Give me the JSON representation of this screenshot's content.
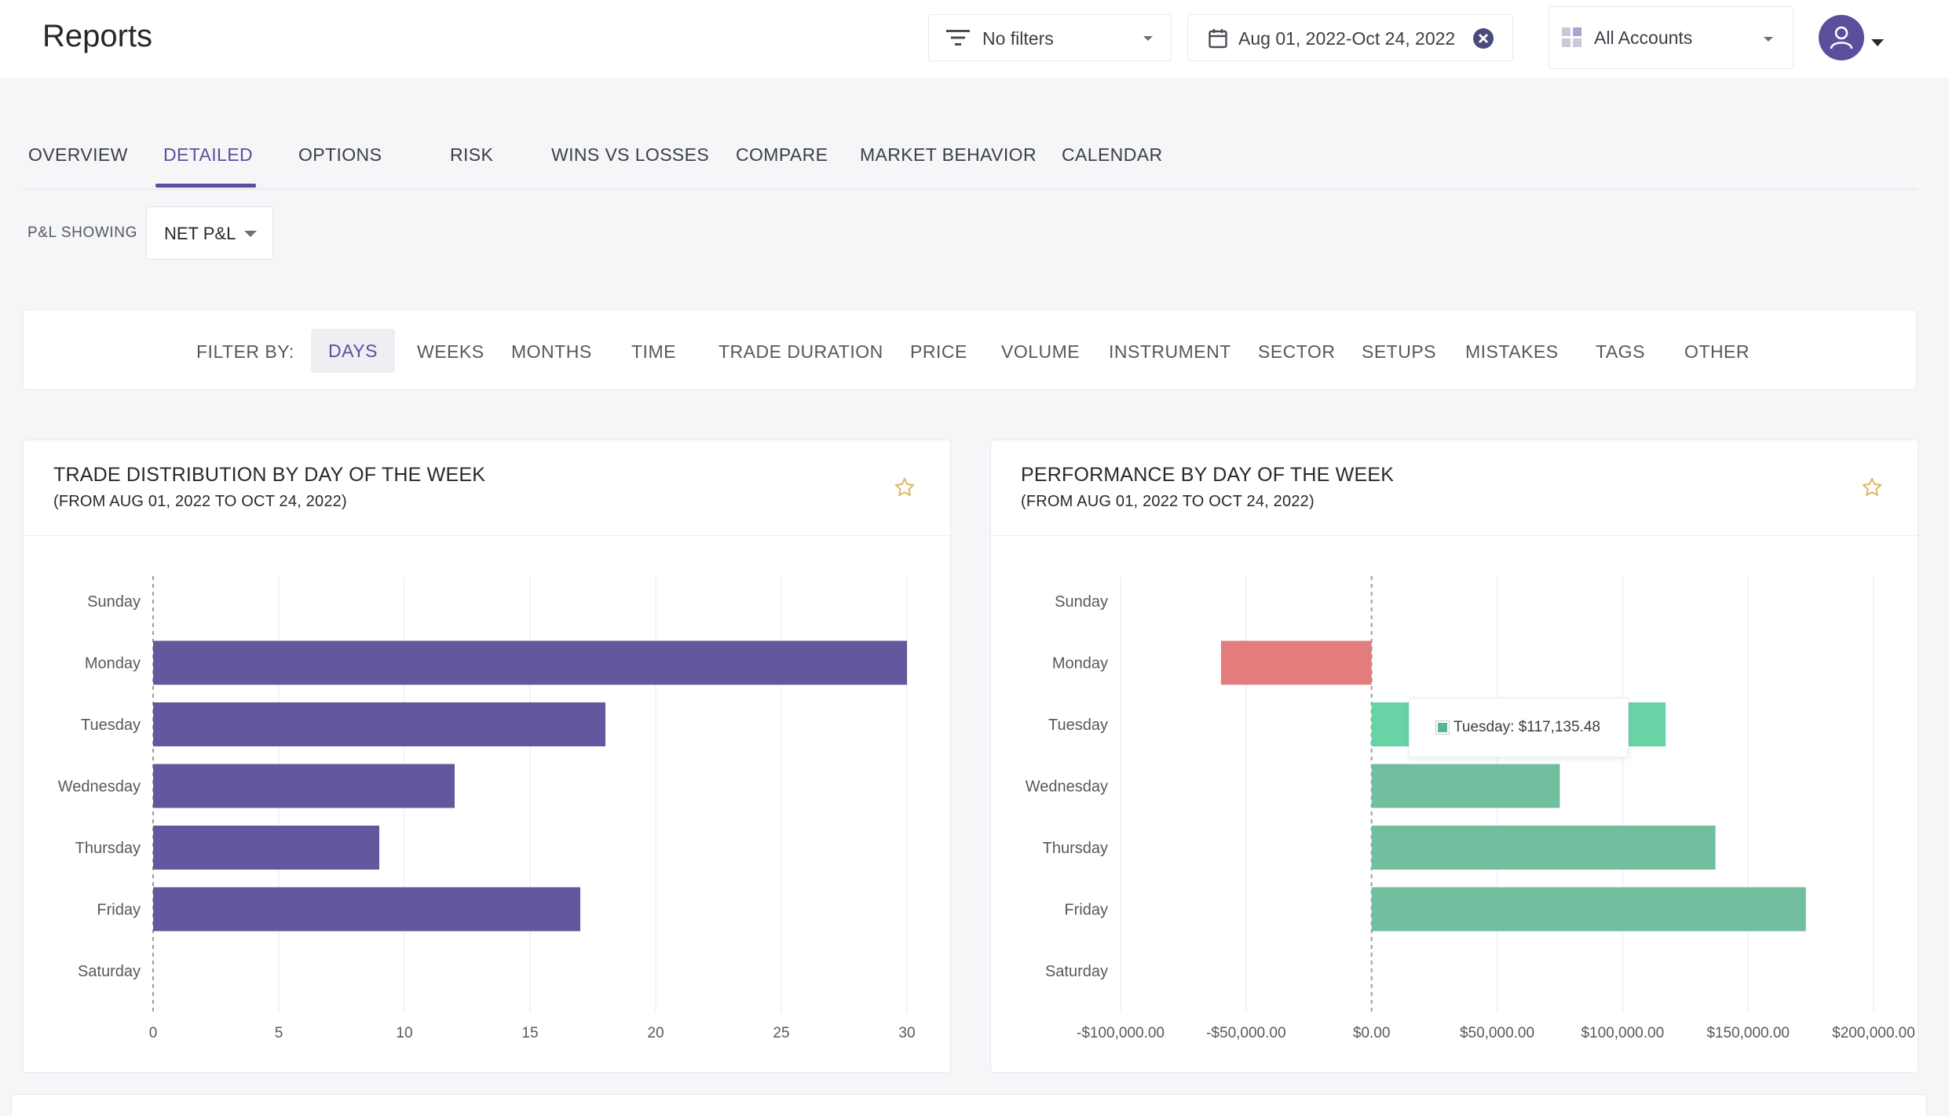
{
  "header": {
    "title": "Reports",
    "filters_label": "No filters",
    "date_range": "Aug 01, 2022-Oct 24, 2022",
    "accounts_label": "All Accounts"
  },
  "tabs": [
    {
      "label": "OVERVIEW"
    },
    {
      "label": "DETAILED",
      "active": true
    },
    {
      "label": "OPTIONS"
    },
    {
      "label": "RISK"
    },
    {
      "label": "WINS VS LOSSES"
    },
    {
      "label": "COMPARE"
    },
    {
      "label": "MARKET BEHAVIOR"
    },
    {
      "label": "CALENDAR"
    }
  ],
  "pnl": {
    "label": "P&L SHOWING",
    "value": "NET P&L"
  },
  "filter_bar": {
    "label": "FILTER BY:",
    "items": [
      "DAYS",
      "WEEKS",
      "MONTHS",
      "TIME",
      "TRADE DURATION",
      "PRICE",
      "VOLUME",
      "INSTRUMENT",
      "SECTOR",
      "SETUPS",
      "MISTAKES",
      "TAGS",
      "OTHER"
    ],
    "active": "DAYS"
  },
  "colors": {
    "accent": "#5b4f9d",
    "bar_purple": "#62589e",
    "positive": "#72bf9f",
    "positive_highlight": "#68d4a6",
    "negative": "#e27c7d"
  },
  "chart_data": [
    {
      "type": "bar",
      "orientation": "horizontal",
      "title": "TRADE DISTRIBUTION BY DAY OF THE WEEK",
      "subtitle": "(FROM AUG 01, 2022 TO OCT 24, 2022)",
      "categories": [
        "Sunday",
        "Monday",
        "Tuesday",
        "Wednesday",
        "Thursday",
        "Friday",
        "Saturday"
      ],
      "values": [
        0,
        30,
        18,
        12,
        9,
        17,
        0
      ],
      "xlim": [
        0,
        30
      ],
      "xticks": [
        0,
        5,
        10,
        15,
        20,
        25,
        30
      ],
      "xtick_labels": [
        "0",
        "5",
        "10",
        "15",
        "20",
        "25",
        "30"
      ],
      "grid": true
    },
    {
      "type": "bar",
      "orientation": "horizontal",
      "title": "PERFORMANCE BY DAY OF THE WEEK",
      "subtitle": "(FROM AUG 01, 2022 TO OCT 24, 2022)",
      "categories": [
        "Sunday",
        "Monday",
        "Tuesday",
        "Wednesday",
        "Thursday",
        "Friday",
        "Saturday"
      ],
      "values": [
        0,
        -60000,
        117135.48,
        75000,
        137000,
        173000,
        0
      ],
      "xlim": [
        -100000,
        200000
      ],
      "xticks": [
        -100000,
        -50000,
        0,
        50000,
        100000,
        150000,
        200000
      ],
      "xtick_labels": [
        "-$100,000.00",
        "-$50,000.00",
        "$0.00",
        "$50,000.00",
        "$100,000.00",
        "$150,000.00",
        "$200,000.00"
      ],
      "grid": true,
      "tooltip": {
        "category": "Tuesday",
        "text": "Tuesday: $117,135.48"
      }
    }
  ]
}
